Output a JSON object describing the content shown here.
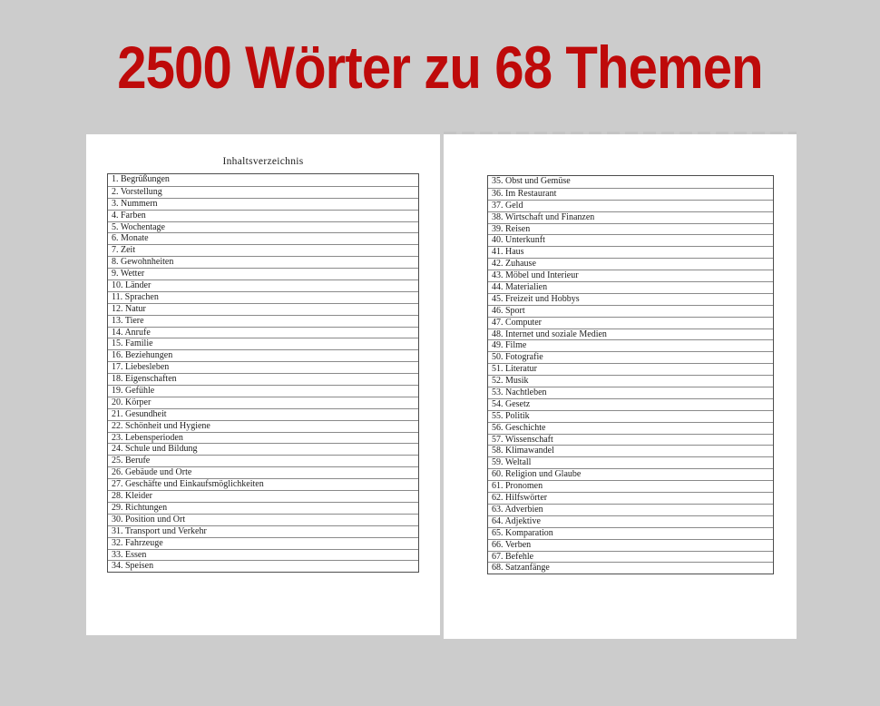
{
  "title": "2500 Wörter zu 68 Themen",
  "colors": {
    "title_red": "#be0a0a",
    "background_gray": "#cccccc",
    "page_white": "#ffffff",
    "table_border": "#4d4d4d"
  },
  "left_page": {
    "heading": "Inhaltsverzeichnis",
    "items": [
      "1. Begrüßungen",
      "2. Vorstellung",
      "3. Nummern",
      "4. Farben",
      "5. Wochentage",
      "6. Monate",
      "7. Zeit",
      "8. Gewohnheiten",
      "9. Wetter",
      "10. Länder",
      "11. Sprachen",
      "12. Natur",
      "13. Tiere",
      "14. Anrufe",
      "15. Familie",
      "16. Beziehungen",
      "17. Liebesleben",
      "18. Eigenschaften",
      "19. Gefühle",
      "20. Körper",
      "21. Gesundheit",
      "22. Schönheit und Hygiene",
      "23. Lebensperioden",
      "24. Schule und Bildung",
      "25. Berufe",
      "26. Gebäude und Orte",
      "27. Geschäfte und Einkaufsmöglichkeiten",
      "28. Kleider",
      "29. Richtungen",
      "30. Position und Ort",
      "31. Transport und Verkehr",
      "32. Fahrzeuge",
      "33. Essen",
      "34. Speisen"
    ]
  },
  "right_page": {
    "items": [
      "35. Obst und Gemüse",
      "36. Im Restaurant",
      "37. Geld",
      "38. Wirtschaft und Finanzen",
      "39. Reisen",
      "40. Unterkunft",
      "41. Haus",
      "42. Zuhause",
      "43. Möbel und Interieur",
      "44. Materialien",
      "45. Freizeit und Hobbys",
      "46. Sport",
      "47. Computer",
      "48. Internet und soziale Medien",
      "49. Filme",
      "50. Fotografie",
      "51. Literatur",
      "52. Musik",
      "53. Nachtleben",
      "54. Gesetz",
      "55. Politik",
      "56. Geschichte",
      "57. Wissenschaft",
      "58. Klimawandel",
      "59. Weltall",
      "60. Religion und Glaube",
      "61. Pronomen",
      "62. Hilfswörter",
      "63. Adverbien",
      "64. Adjektive",
      "65. Komparation",
      "66. Verben",
      "67. Befehle",
      "68. Satzanfänge"
    ]
  }
}
